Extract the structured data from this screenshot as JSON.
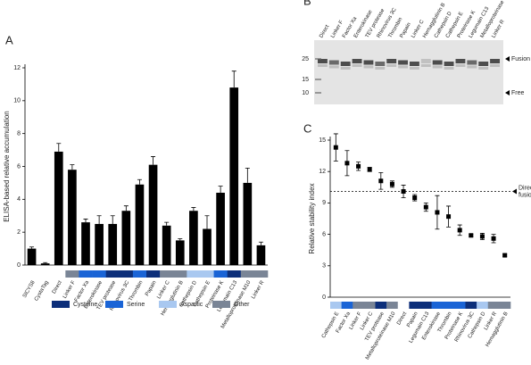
{
  "panel_labels": [
    "A",
    "B",
    "C"
  ],
  "chart_data": [
    {
      "type": "bar",
      "ylabel": "ELISA-based relative accumulation",
      "categories": [
        "SlCYS8",
        "CystaTag",
        "Direct",
        "Linker F",
        "Factor Xa",
        "Enterokinase",
        "TEV protease",
        "Rhinovirus 3C",
        "Thrombin",
        "Papain",
        "Linker C",
        "Hemagglutinin B",
        "Cathepsin D",
        "Cathepsin E",
        "Proteinase K",
        "Legumain C13",
        "Metalloproteinase M10",
        "Linker R"
      ],
      "values": [
        1.0,
        0.1,
        6.9,
        5.8,
        2.6,
        2.5,
        2.5,
        3.3,
        4.9,
        6.1,
        2.4,
        1.5,
        3.3,
        2.2,
        4.4,
        10.8,
        5.0,
        1.2
      ],
      "errors": [
        0.1,
        0.05,
        0.5,
        0.3,
        0.2,
        0.5,
        0.5,
        0.3,
        0.3,
        0.5,
        0.2,
        0.1,
        0.2,
        0.8,
        0.4,
        1.0,
        0.9,
        0.2
      ],
      "color": "#000000",
      "classes": [
        null,
        null,
        null,
        "Other",
        "Serine",
        "Serine",
        "Cysteine",
        "Cysteine",
        "Serine",
        "Cysteine",
        "Other",
        "Other",
        "Aspartic",
        "Aspartic",
        "Serine",
        "Cysteine",
        "Other",
        "Other"
      ],
      "legend": [
        {
          "name": "Cysteine",
          "color": "#0d2f7a"
        },
        {
          "name": "Serine",
          "color": "#1a64d6"
        },
        {
          "name": "Aspartic",
          "color": "#a9c8f0"
        },
        {
          "name": "Other",
          "color": "#7a8596"
        }
      ],
      "ylim": [
        0,
        12
      ],
      "yticks": [
        0,
        2,
        4,
        6,
        8,
        10,
        12
      ]
    },
    {
      "type": "scatter",
      "ylabel": "Relative stability index",
      "categories": [
        "Cathepsin E",
        "Factor Xa",
        "Linker F",
        "Linker C",
        "TEV protease",
        "Metalloproteinase M10",
        "Direct",
        "Papain",
        "Legumain C13",
        "Enterokinase",
        "Thrombin",
        "Proteinase K",
        "Rhinovirus 3C",
        "Cathepsin D",
        "Linker R",
        "Hemagglutinin B"
      ],
      "values": [
        14.3,
        12.8,
        12.5,
        12.2,
        11.1,
        10.8,
        10.1,
        9.5,
        8.6,
        8.1,
        7.7,
        6.4,
        5.9,
        5.8,
        5.6,
        4.0
      ],
      "errors": [
        1.3,
        1.2,
        0.4,
        0.2,
        0.8,
        0.3,
        0.6,
        0.3,
        0.4,
        1.6,
        1.0,
        0.5,
        0.1,
        0.3,
        0.4,
        0.1
      ],
      "color": "#000000",
      "classes": [
        "Aspartic",
        "Serine",
        "Other",
        "Other",
        "Cysteine",
        "Other",
        null,
        "Cysteine",
        "Cysteine",
        "Serine",
        "Serine",
        "Serine",
        "Cysteine",
        "Aspartic",
        "Other",
        "Other"
      ],
      "reference_line": {
        "value": 10.1,
        "label": [
          "Direct",
          "fusion"
        ]
      },
      "ylim": [
        0,
        15
      ],
      "yticks": [
        0,
        3,
        6,
        9,
        12,
        15
      ]
    }
  ],
  "gel": {
    "lanes": [
      "Direct",
      "Linker F",
      "Factor Xa",
      "Enterokinase",
      "TEV protease",
      "Rhinovirus 3C",
      "Thrombin",
      "Papain",
      "Linker C",
      "Hemagglutinin B",
      "Cathepsin D",
      "Cathepsin E",
      "Proteinase K",
      "Legumain C13",
      "Metalloproteinase M10",
      "Linker R"
    ],
    "markers": [
      "25",
      "15",
      "10"
    ],
    "bands": [
      "Fusion",
      "Free"
    ]
  }
}
